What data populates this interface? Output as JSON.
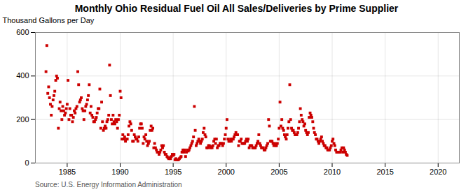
{
  "chart_data": {
    "type": "scatter",
    "title": "Monthly Ohio Residual Fuel Oil All Sales/Deliveries by Prime Supplier",
    "ylabel": "Thousand Gallons per Day",
    "source": "Source: U.S. Energy Information Administration",
    "color": "#cc0000",
    "marker": "square",
    "grid": true,
    "xlim": [
      1982,
      2022
    ],
    "ylim": [
      0,
      600
    ],
    "xticks": [
      1985,
      1990,
      1995,
      2000,
      2005,
      2010,
      2015,
      2020
    ],
    "yticks": [
      0,
      200,
      400,
      600
    ],
    "x": [
      1983.0,
      1983.08,
      1983.17,
      1983.25,
      1983.33,
      1983.42,
      1983.5,
      1983.58,
      1983.67,
      1983.75,
      1983.83,
      1983.92,
      1984.0,
      1984.08,
      1984.17,
      1984.25,
      1984.33,
      1984.42,
      1984.5,
      1984.58,
      1984.67,
      1984.75,
      1984.83,
      1984.92,
      1985.0,
      1985.08,
      1985.17,
      1985.25,
      1985.33,
      1985.42,
      1985.5,
      1985.58,
      1985.67,
      1985.75,
      1985.83,
      1985.92,
      1986.0,
      1986.08,
      1986.17,
      1986.25,
      1986.33,
      1986.42,
      1986.5,
      1986.58,
      1986.67,
      1986.75,
      1986.83,
      1986.92,
      1987.0,
      1987.08,
      1987.17,
      1987.25,
      1987.33,
      1987.42,
      1987.5,
      1987.58,
      1987.67,
      1987.75,
      1987.83,
      1987.92,
      1988.0,
      1988.08,
      1988.17,
      1988.25,
      1988.33,
      1988.42,
      1988.5,
      1988.58,
      1988.67,
      1988.75,
      1988.83,
      1988.92,
      1989.0,
      1989.08,
      1989.17,
      1989.25,
      1989.33,
      1989.42,
      1989.5,
      1989.58,
      1989.67,
      1989.75,
      1989.83,
      1989.92,
      1990.0,
      1990.08,
      1990.17,
      1990.25,
      1990.33,
      1990.42,
      1990.5,
      1990.58,
      1990.67,
      1990.75,
      1990.83,
      1990.92,
      1991.0,
      1991.08,
      1991.17,
      1991.25,
      1991.33,
      1991.42,
      1991.5,
      1991.58,
      1991.67,
      1991.75,
      1991.83,
      1991.92,
      1992.0,
      1992.08,
      1992.17,
      1992.25,
      1992.33,
      1992.42,
      1992.5,
      1992.58,
      1992.67,
      1992.75,
      1992.83,
      1992.92,
      1993.0,
      1993.08,
      1993.17,
      1993.25,
      1993.33,
      1993.42,
      1993.5,
      1993.58,
      1993.67,
      1993.75,
      1993.83,
      1993.92,
      1994.0,
      1994.08,
      1994.17,
      1994.25,
      1994.33,
      1994.42,
      1994.5,
      1994.58,
      1994.67,
      1994.75,
      1994.83,
      1994.92,
      1995.0,
      1995.08,
      1995.17,
      1995.25,
      1995.33,
      1995.42,
      1995.5,
      1995.58,
      1995.67,
      1995.75,
      1995.83,
      1995.92,
      1996.0,
      1996.08,
      1996.17,
      1996.25,
      1996.33,
      1996.42,
      1996.5,
      1996.58,
      1996.67,
      1996.75,
      1996.83,
      1996.92,
      1997.0,
      1997.08,
      1997.17,
      1997.25,
      1997.33,
      1997.42,
      1997.5,
      1997.58,
      1997.67,
      1997.75,
      1997.83,
      1997.92,
      1998.0,
      1998.08,
      1998.17,
      1998.25,
      1998.33,
      1998.42,
      1998.5,
      1998.58,
      1998.67,
      1998.75,
      1998.83,
      1998.92,
      1999.0,
      1999.08,
      1999.17,
      1999.25,
      1999.33,
      1999.42,
      1999.5,
      1999.58,
      1999.67,
      1999.75,
      1999.83,
      1999.92,
      2000.0,
      2000.08,
      2000.17,
      2000.25,
      2000.33,
      2000.42,
      2000.5,
      2000.58,
      2000.67,
      2000.75,
      2000.83,
      2000.92,
      2001.0,
      2001.08,
      2001.17,
      2001.25,
      2001.33,
      2001.42,
      2001.5,
      2001.58,
      2001.67,
      2001.75,
      2001.83,
      2001.92,
      2002.0,
      2002.08,
      2002.17,
      2002.25,
      2002.33,
      2002.42,
      2002.5,
      2002.58,
      2002.67,
      2002.75,
      2002.83,
      2002.92,
      2003.0,
      2003.08,
      2003.17,
      2003.25,
      2003.33,
      2003.42,
      2003.5,
      2003.58,
      2003.67,
      2003.75,
      2003.83,
      2003.92,
      2004.0,
      2004.08,
      2004.17,
      2004.25,
      2004.33,
      2004.42,
      2004.5,
      2004.58,
      2004.67,
      2004.75,
      2004.83,
      2004.92,
      2005.0,
      2005.08,
      2005.17,
      2005.25,
      2005.33,
      2005.42,
      2005.5,
      2005.58,
      2005.67,
      2005.75,
      2005.83,
      2005.92,
      2006.0,
      2006.08,
      2006.17,
      2006.25,
      2006.33,
      2006.42,
      2006.5,
      2006.58,
      2006.67,
      2006.75,
      2006.83,
      2006.92,
      2007.0,
      2007.08,
      2007.17,
      2007.25,
      2007.33,
      2007.42,
      2007.5,
      2007.58,
      2007.67,
      2007.75,
      2007.83,
      2007.92,
      2008.0,
      2008.08,
      2008.17,
      2008.25,
      2008.33,
      2008.42,
      2008.5,
      2008.58,
      2008.67,
      2008.75,
      2008.83,
      2008.92,
      2009.0,
      2009.08,
      2009.17,
      2009.25,
      2009.33,
      2009.42,
      2009.5,
      2009.58,
      2009.67,
      2009.75,
      2009.83,
      2009.92,
      2010.0,
      2010.08,
      2010.17,
      2010.25,
      2010.33,
      2010.42,
      2010.5,
      2010.58,
      2010.67,
      2010.75,
      2010.83,
      2010.92,
      2011.0,
      2011.08,
      2011.17,
      2011.25,
      2011.33,
      2011.42
    ],
    "values": [
      420,
      540,
      320,
      350,
      300,
      270,
      220,
      260,
      290,
      310,
      330,
      380,
      400,
      390,
      160,
      250,
      280,
      240,
      200,
      260,
      240,
      220,
      230,
      250,
      270,
      380,
      200,
      250,
      220,
      220,
      190,
      210,
      240,
      230,
      250,
      260,
      420,
      360,
      280,
      290,
      300,
      250,
      240,
      200,
      240,
      260,
      270,
      290,
      310,
      360,
      230,
      260,
      220,
      210,
      190,
      190,
      200,
      210,
      230,
      250,
      250,
      340,
      160,
      280,
      190,
      150,
      160,
      170,
      160,
      190,
      200,
      220,
      450,
      310,
      200,
      180,
      220,
      190,
      180,
      200,
      190,
      160,
      200,
      220,
      330,
      300,
      110,
      130,
      110,
      120,
      100,
      110,
      110,
      130,
      170,
      190,
      180,
      150,
      100,
      100,
      130,
      120,
      110,
      110,
      100,
      120,
      160,
      180,
      180,
      160,
      90,
      120,
      110,
      130,
      100,
      80,
      90,
      100,
      150,
      170,
      150,
      160,
      70,
      90,
      70,
      60,
      50,
      50,
      40,
      50,
      60,
      80,
      70,
      80,
      50,
      40,
      40,
      30,
      25,
      20,
      25,
      20,
      30,
      40,
      35,
      40,
      15,
      20,
      15,
      15,
      15,
      20,
      25,
      30,
      50,
      60,
      50,
      60,
      30,
      50,
      60,
      55,
      60,
      70,
      80,
      90,
      100,
      120,
      260,
      150,
      80,
      90,
      100,
      110,
      100,
      90,
      100,
      110,
      140,
      160,
      130,
      120,
      70,
      70,
      80,
      80,
      70,
      75,
      70,
      80,
      100,
      110,
      90,
      110,
      70,
      80,
      80,
      90,
      90,
      90,
      80,
      90,
      110,
      130,
      160,
      200,
      110,
      100,
      100,
      110,
      100,
      110,
      110,
      120,
      130,
      140,
      130,
      130,
      80,
      100,
      100,
      110,
      90,
      90,
      90,
      90,
      100,
      110,
      100,
      110,
      70,
      80,
      80,
      80,
      70,
      70,
      70,
      70,
      80,
      90,
      100,
      130,
      90,
      80,
      70,
      70,
      70,
      60,
      60,
      70,
      80,
      90,
      200,
      170,
      100,
      100,
      100,
      90,
      80,
      90,
      80,
      80,
      90,
      110,
      160,
      280,
      170,
      200,
      160,
      150,
      130,
      120,
      110,
      130,
      160,
      190,
      360,
      200,
      160,
      150,
      150,
      140,
      130,
      130,
      130,
      140,
      160,
      190,
      250,
      220,
      200,
      190,
      170,
      180,
      150,
      140,
      130,
      140,
      210,
      230,
      220,
      210,
      190,
      160,
      140,
      130,
      110,
      110,
      100,
      90,
      100,
      110,
      120,
      100,
      90,
      80,
      80,
      70,
      70,
      60,
      60,
      60,
      70,
      80,
      100,
      110,
      90,
      80,
      60,
      50,
      50,
      50,
      50,
      50,
      60,
      70,
      50,
      70,
      60,
      50,
      40,
      35
    ]
  }
}
